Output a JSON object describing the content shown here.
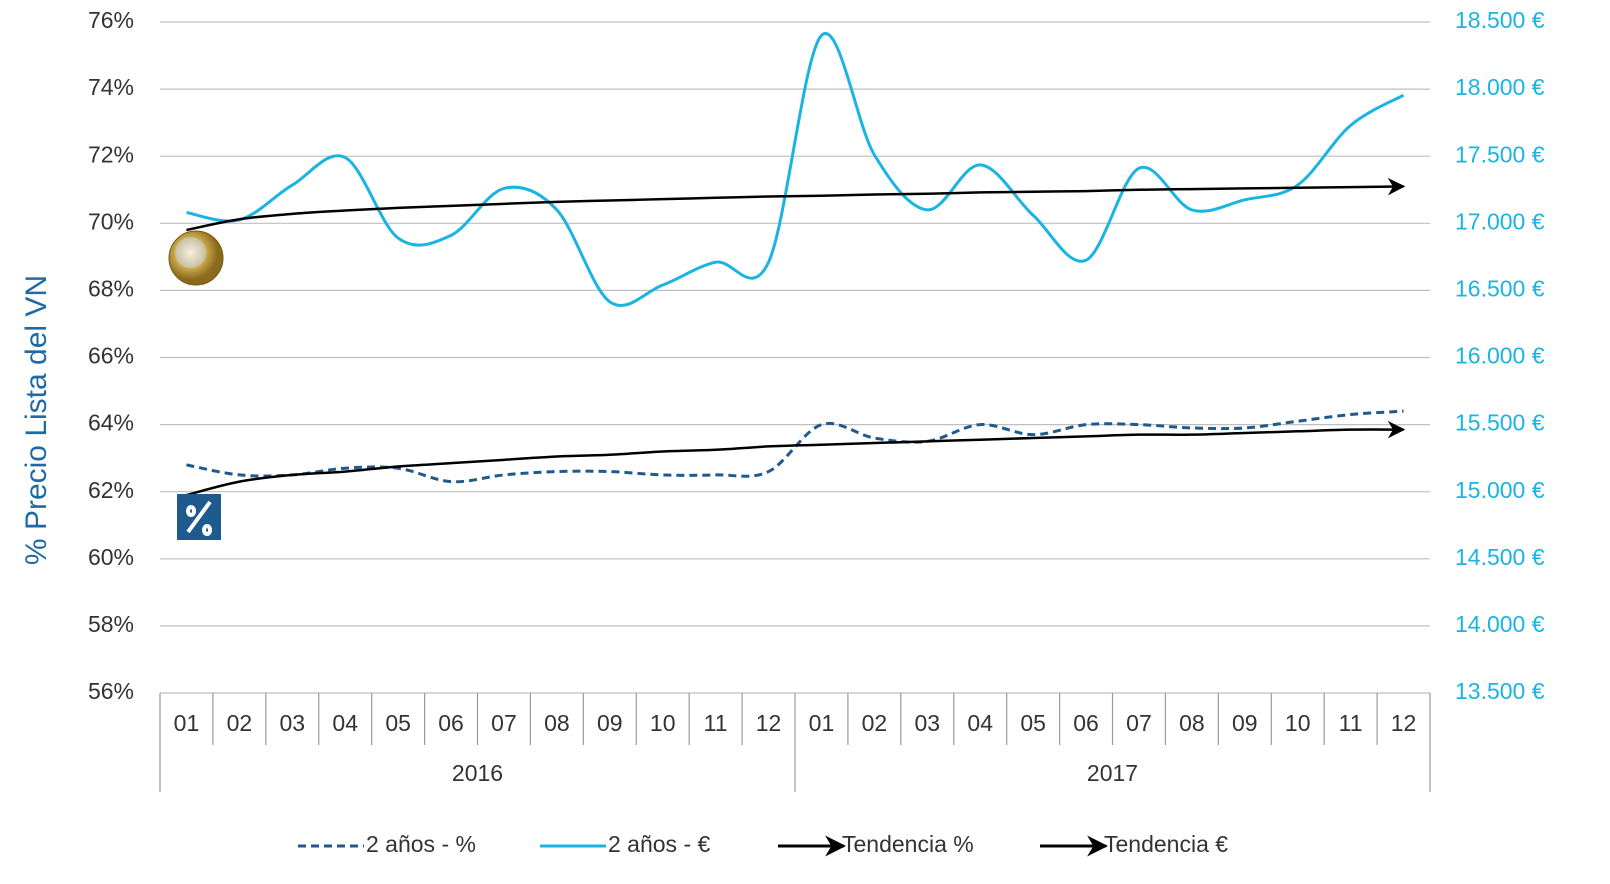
{
  "chart_data": {
    "type": "line",
    "y_label": "% Precio Lista del VN",
    "categories": [
      "01",
      "02",
      "03",
      "04",
      "05",
      "06",
      "07",
      "08",
      "09",
      "10",
      "11",
      "12",
      "01",
      "02",
      "03",
      "04",
      "05",
      "06",
      "07",
      "08",
      "09",
      "10",
      "11",
      "12"
    ],
    "year_labels": [
      "2016",
      "2017"
    ],
    "ylim": [
      56,
      76
    ],
    "yticks": [
      {
        "value": 56,
        "label": "56%"
      },
      {
        "value": 58,
        "label": "58%"
      },
      {
        "value": 60,
        "label": "60%"
      },
      {
        "value": 62,
        "label": "62%"
      },
      {
        "value": 64,
        "label": "64%"
      },
      {
        "value": 66,
        "label": "66%"
      },
      {
        "value": 68,
        "label": "68%"
      },
      {
        "value": 70,
        "label": "70%"
      },
      {
        "value": 72,
        "label": "72%"
      },
      {
        "value": 74,
        "label": "74%"
      },
      {
        "value": 76,
        "label": "76%"
      }
    ],
    "y2lim": [
      13500,
      18500
    ],
    "y2ticks": [
      {
        "value": 13500,
        "label": "13.500 €"
      },
      {
        "value": 14000,
        "label": "14.000 €"
      },
      {
        "value": 14500,
        "label": "14.500 €"
      },
      {
        "value": 15000,
        "label": "15.000 €"
      },
      {
        "value": 15500,
        "label": "15.500 €"
      },
      {
        "value": 16000,
        "label": "16.000 €"
      },
      {
        "value": 16500,
        "label": "16.500 €"
      },
      {
        "value": 17000,
        "label": "17.000 €"
      },
      {
        "value": 17500,
        "label": "17.500 €"
      },
      {
        "value": 18000,
        "label": "18.000 €"
      },
      {
        "value": 18500,
        "label": "18.500 €"
      }
    ],
    "grid": true,
    "legend": "bottom",
    "series": [
      {
        "name": "2 años - %",
        "color": "#1f5a8f",
        "style": "dashed",
        "axis": "y",
        "values": [
          62.8,
          62.5,
          62.5,
          62.7,
          62.7,
          62.3,
          62.5,
          62.6,
          62.6,
          62.5,
          62.5,
          62.6,
          64.0,
          63.6,
          63.5,
          64.0,
          63.7,
          64.0,
          64.0,
          63.9,
          63.9,
          64.1,
          64.3,
          64.4
        ]
      },
      {
        "name": "2 años - €",
        "color": "#1ab4e2",
        "style": "solid",
        "axis": "y2",
        "values": [
          17080,
          17025,
          17285,
          17490,
          16890,
          16910,
          17260,
          17100,
          16415,
          16540,
          16710,
          16710,
          18400,
          17510,
          17100,
          17435,
          17060,
          16725,
          17410,
          17100,
          17175,
          17285,
          17730,
          17955
        ]
      },
      {
        "name": "Tendencia %",
        "color": "#000000",
        "style": "arrow",
        "axis": "y",
        "values": [
          61.9,
          62.3,
          62.5,
          62.6,
          62.75,
          62.85,
          62.95,
          63.05,
          63.1,
          63.2,
          63.25,
          63.35,
          63.4,
          63.45,
          63.5,
          63.55,
          63.6,
          63.65,
          63.7,
          63.7,
          63.75,
          63.8,
          63.85,
          63.85
        ]
      },
      {
        "name": "Tendencia €",
        "color": "#000000",
        "style": "arrow",
        "axis": "y2",
        "values": [
          16950,
          17030,
          17070,
          17095,
          17115,
          17130,
          17145,
          17160,
          17170,
          17180,
          17190,
          17200,
          17205,
          17215,
          17220,
          17230,
          17235,
          17240,
          17250,
          17255,
          17260,
          17265,
          17270,
          17275
        ]
      }
    ]
  }
}
